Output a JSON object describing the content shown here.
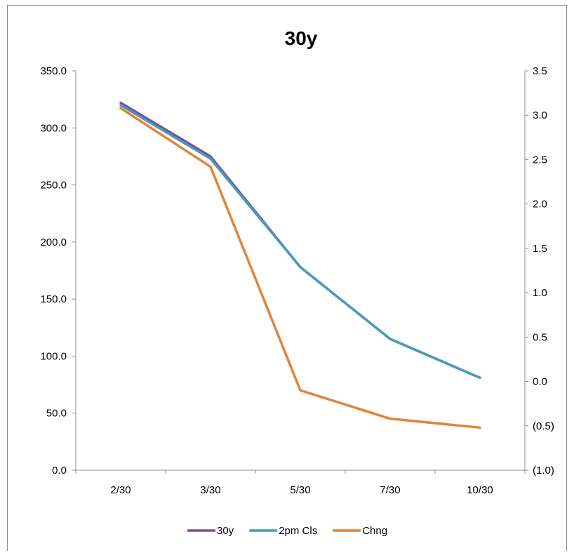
{
  "chart_data": {
    "type": "line",
    "title": "30y",
    "categories": [
      "2/30",
      "3/30",
      "5/30",
      "7/30",
      "10/30"
    ],
    "y_left": {
      "range": [
        0,
        350
      ],
      "ticks": [
        "0.0",
        "50.0",
        "100.0",
        "150.0",
        "200.0",
        "250.0",
        "300.0",
        "350.0"
      ]
    },
    "y_right": {
      "range": [
        -1.0,
        3.5
      ],
      "ticks": [
        "(1.0)",
        "(0.5)",
        "0.0",
        "0.5",
        "1.0",
        "1.5",
        "2.0",
        "2.5",
        "3.0",
        "3.5"
      ],
      "negative_color": "#ff0000"
    },
    "series": [
      {
        "name": "30y",
        "axis": "left",
        "color": "#7a4f9a",
        "values": [
          322,
          275,
          178,
          115,
          81
        ]
      },
      {
        "name": "2pm Cls",
        "axis": "left",
        "color": "#4a9bb5",
        "values": [
          320,
          273,
          178,
          115,
          81
        ]
      },
      {
        "name": "Chng",
        "axis": "right",
        "color": "#e0843a",
        "values": [
          3.08,
          2.42,
          -0.1,
          -0.42,
          -0.52
        ]
      }
    ],
    "grid": false,
    "legend_position": "bottom"
  }
}
